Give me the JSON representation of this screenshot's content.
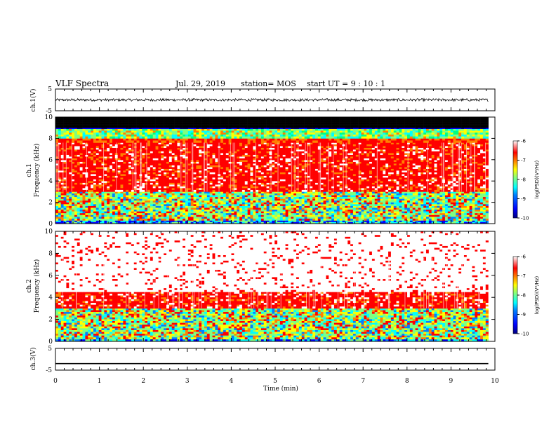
{
  "header": {
    "title": "VLF Spectra",
    "date": "Jul. 29, 2019",
    "station": "station= MOS",
    "start": "start UT =  9 : 10 : 1"
  },
  "colors": {
    "jet": [
      "#00007f",
      "#0000ff",
      "#0080ff",
      "#00ffff",
      "#80ff80",
      "#ffff00",
      "#ff8000",
      "#ff0000",
      "#ffffff"
    ]
  },
  "chart_data": [
    {
      "type": "line",
      "name": "ch1-voltage",
      "ylabel": "ch.1(V)",
      "ylim": [
        -5,
        5
      ],
      "yticks": [
        "5",
        "-5"
      ],
      "xlim": [
        0,
        10
      ],
      "series": [
        {
          "values_description_free": true,
          "level": 0,
          "noise_amplitude": 0.6
        }
      ]
    },
    {
      "type": "heatmap",
      "name": "ch1-spectrogram",
      "ylabel_line1": "ch.1",
      "ylabel_line2": "Frequency (kHz)",
      "ylim": [
        0,
        10
      ],
      "yticks": [
        "0",
        "2",
        "4",
        "6",
        "8",
        "10"
      ],
      "xlim": [
        0,
        10
      ],
      "data_end_min": 9.85,
      "colorbar": {
        "label": "log(PSD)(V²/Hz)",
        "range": [
          -10,
          -6
        ],
        "ticks": [
          "-6",
          "-7",
          "-8",
          "-9",
          "-10"
        ]
      },
      "bands": [
        {
          "f0": 0.0,
          "f1": 0.3,
          "level": "blue-green"
        },
        {
          "f0": 0.3,
          "f1": 3.0,
          "level": "green-yellow"
        },
        {
          "f0": 3.0,
          "f1": 7.6,
          "level": "red"
        },
        {
          "f0": 7.6,
          "f1": 8.0,
          "level": "red-orange"
        },
        {
          "f0": 8.0,
          "f1": 8.9,
          "level": "yellow-green-cyan"
        },
        {
          "f0": 8.9,
          "f1": 9.0,
          "level": "blue"
        },
        {
          "f0": 9.0,
          "f1": 10.0,
          "level": "black"
        }
      ]
    },
    {
      "type": "heatmap",
      "name": "ch2-spectrogram",
      "ylabel_line1": "ch.2",
      "ylabel_line2": "Frequency (kHz)",
      "ylim": [
        0,
        10
      ],
      "yticks": [
        "0",
        "2",
        "4",
        "6",
        "8",
        "10"
      ],
      "xlim": [
        0,
        10
      ],
      "data_end_min": 9.85,
      "colorbar": {
        "label": "log(PSD)(V²/Hz)",
        "range": [
          -10,
          -6
        ],
        "ticks": [
          "-6",
          "-7",
          "-8",
          "-9",
          "-10"
        ]
      },
      "bands": [
        {
          "f0": 0.0,
          "f1": 0.2,
          "level": "blue-green"
        },
        {
          "f0": 0.2,
          "f1": 3.0,
          "level": "green-yellow"
        },
        {
          "f0": 3.0,
          "f1": 4.5,
          "level": "red"
        },
        {
          "f0": 4.5,
          "f1": 10.0,
          "level": "sparse-red"
        }
      ]
    },
    {
      "type": "line",
      "name": "ch3-voltage",
      "ylabel": "ch.3(V)",
      "ylim": [
        -5,
        5
      ],
      "yticks": [
        "5",
        "-5"
      ],
      "xlim": [
        0,
        10
      ],
      "series": [
        {
          "level": -2.0,
          "noise_amplitude": 0.0
        }
      ]
    }
  ],
  "xaxis": {
    "label": "Time (min)",
    "ticks": [
      "0",
      "1",
      "2",
      "3",
      "4",
      "5",
      "6",
      "7",
      "8",
      "9",
      "10"
    ]
  }
}
